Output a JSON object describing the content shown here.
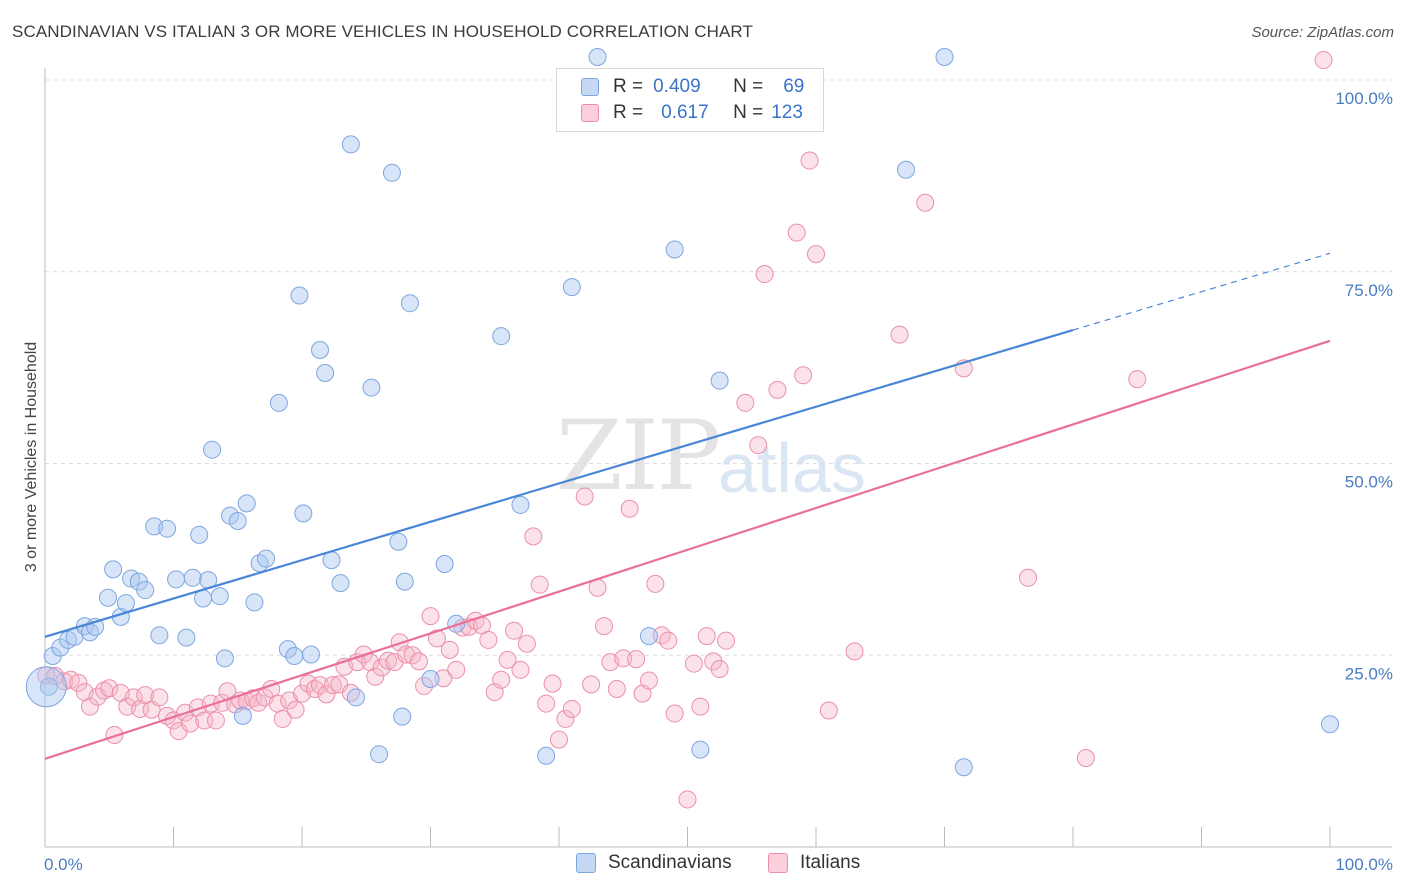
{
  "header": {
    "title": "SCANDINAVIAN VS ITALIAN 3 OR MORE VEHICLES IN HOUSEHOLD CORRELATION CHART",
    "source": "Source: ZipAtlas.com"
  },
  "watermark": {
    "zip": "ZIP",
    "atlas": "atlas"
  },
  "legend": {
    "rows": [
      {
        "r_label": "R =",
        "r_value": "0.409",
        "n_label": "N =",
        "n_value": "69",
        "color": "#a9c6ef"
      },
      {
        "r_label": "R =",
        "r_value": "0.617",
        "n_label": "N =",
        "n_value": "123",
        "color": "#f5b7c9"
      }
    ]
  },
  "bottom_legend": [
    {
      "label": "Scandinavians",
      "color": "#a9c6ef"
    },
    {
      "label": "Italians",
      "color": "#f5b7c9"
    }
  ],
  "chart_data": {
    "type": "scatter",
    "title": "SCANDINAVIAN VS ITALIAN 3 OR MORE VEHICLES IN HOUSEHOLD CORRELATION CHART",
    "ylabel": "3 or more Vehicles in Household",
    "xlabel": "",
    "xlim": [
      0,
      100
    ],
    "ylim": [
      0,
      100
    ],
    "x_tick_labels": [
      "0.0%",
      "100.0%"
    ],
    "y_tick_labels": [
      "25.0%",
      "50.0%",
      "75.0%",
      "100.0%"
    ],
    "y_ticks": [
      25,
      50,
      75,
      100
    ],
    "grid": true,
    "legend_position": "top-center",
    "colors": {
      "scandinavians": "#4a86d8",
      "italians": "#e8709a"
    },
    "series": [
      {
        "name": "Scandinavians",
        "trend": {
          "x": [
            0,
            80
          ],
          "y": [
            27.4,
            67.4
          ],
          "dashed_to": [
            100,
            77.4
          ]
        },
        "points": [
          [
            0.3,
            20.9
          ],
          [
            0.6,
            24.9
          ],
          [
            1.2,
            26.0
          ],
          [
            1.8,
            27.0
          ],
          [
            2.3,
            27.4
          ],
          [
            3.1,
            28.8
          ],
          [
            3.5,
            28.0
          ],
          [
            3.9,
            28.7
          ],
          [
            4.9,
            32.5
          ],
          [
            5.3,
            36.2
          ],
          [
            5.9,
            30.0
          ],
          [
            6.3,
            31.8
          ],
          [
            6.7,
            35.0
          ],
          [
            7.3,
            34.6
          ],
          [
            7.8,
            33.5
          ],
          [
            8.5,
            41.8
          ],
          [
            8.9,
            27.6
          ],
          [
            9.5,
            41.5
          ],
          [
            10.2,
            34.9
          ],
          [
            11.0,
            27.3
          ],
          [
            11.5,
            35.1
          ],
          [
            12.0,
            40.7
          ],
          [
            12.3,
            32.4
          ],
          [
            12.7,
            34.8
          ],
          [
            13.0,
            51.8
          ],
          [
            13.6,
            32.7
          ],
          [
            14.0,
            24.6
          ],
          [
            14.4,
            43.2
          ],
          [
            15.0,
            42.5
          ],
          [
            15.4,
            17.1
          ],
          [
            15.7,
            44.8
          ],
          [
            16.3,
            31.9
          ],
          [
            16.7,
            37.0
          ],
          [
            17.2,
            37.6
          ],
          [
            18.2,
            57.9
          ],
          [
            18.9,
            25.8
          ],
          [
            19.4,
            24.9
          ],
          [
            19.8,
            71.9
          ],
          [
            20.1,
            43.5
          ],
          [
            20.7,
            25.1
          ],
          [
            21.4,
            64.8
          ],
          [
            21.8,
            61.8
          ],
          [
            22.3,
            37.4
          ],
          [
            23.0,
            34.4
          ],
          [
            23.8,
            91.6
          ],
          [
            24.2,
            19.5
          ],
          [
            25.4,
            59.9
          ],
          [
            26.0,
            12.1
          ],
          [
            27.0,
            87.9
          ],
          [
            27.5,
            39.8
          ],
          [
            27.8,
            17.0
          ],
          [
            28.0,
            34.6
          ],
          [
            28.4,
            70.9
          ],
          [
            30.0,
            21.9
          ],
          [
            31.1,
            36.9
          ],
          [
            32.0,
            29.1
          ],
          [
            35.5,
            66.6
          ],
          [
            37.0,
            44.6
          ],
          [
            39.0,
            11.9
          ],
          [
            41.0,
            73.0
          ],
          [
            43.0,
            104.0
          ],
          [
            47.0,
            27.5
          ],
          [
            49.0,
            77.9
          ],
          [
            51.0,
            12.7
          ],
          [
            52.5,
            60.8
          ],
          [
            67.0,
            88.3
          ],
          [
            70.0,
            104.0
          ],
          [
            71.5,
            10.4
          ],
          [
            100.0,
            16.0
          ]
        ]
      },
      {
        "name": "Italians",
        "trend": {
          "x": [
            0,
            100
          ],
          "y": [
            11.5,
            66.0
          ]
        },
        "points": [
          [
            0.1,
            22.4
          ],
          [
            0.8,
            22.3
          ],
          [
            1.5,
            21.6
          ],
          [
            2.0,
            21.8
          ],
          [
            2.6,
            21.4
          ],
          [
            3.1,
            20.2
          ],
          [
            3.5,
            18.3
          ],
          [
            4.1,
            19.6
          ],
          [
            4.6,
            20.4
          ],
          [
            5.0,
            20.7
          ],
          [
            5.4,
            14.6
          ],
          [
            5.9,
            20.1
          ],
          [
            6.4,
            18.3
          ],
          [
            6.9,
            19.5
          ],
          [
            7.4,
            18.0
          ],
          [
            7.8,
            19.8
          ],
          [
            8.3,
            17.9
          ],
          [
            8.9,
            19.5
          ],
          [
            9.5,
            17.1
          ],
          [
            10.0,
            16.5
          ],
          [
            10.4,
            15.1
          ],
          [
            10.9,
            17.5
          ],
          [
            11.3,
            16.1
          ],
          [
            11.9,
            18.2
          ],
          [
            12.4,
            16.5
          ],
          [
            12.9,
            18.7
          ],
          [
            13.3,
            16.5
          ],
          [
            13.8,
            18.8
          ],
          [
            14.2,
            20.3
          ],
          [
            14.8,
            18.6
          ],
          [
            15.2,
            19.1
          ],
          [
            15.7,
            19.0
          ],
          [
            16.2,
            19.4
          ],
          [
            16.6,
            18.8
          ],
          [
            17.1,
            19.5
          ],
          [
            17.6,
            20.6
          ],
          [
            18.1,
            18.7
          ],
          [
            18.5,
            16.7
          ],
          [
            19.0,
            19.1
          ],
          [
            19.5,
            17.9
          ],
          [
            20.0,
            20.0
          ],
          [
            20.5,
            21.3
          ],
          [
            21.0,
            20.6
          ],
          [
            21.4,
            21.1
          ],
          [
            21.9,
            19.9
          ],
          [
            22.4,
            21.1
          ],
          [
            22.9,
            21.2
          ],
          [
            23.3,
            23.5
          ],
          [
            23.8,
            20.1
          ],
          [
            24.3,
            24.1
          ],
          [
            24.8,
            25.1
          ],
          [
            25.3,
            24.1
          ],
          [
            25.7,
            22.2
          ],
          [
            26.2,
            23.4
          ],
          [
            26.7,
            24.3
          ],
          [
            27.2,
            24.1
          ],
          [
            27.6,
            26.7
          ],
          [
            28.1,
            25.1
          ],
          [
            28.6,
            25.0
          ],
          [
            29.1,
            24.2
          ],
          [
            29.5,
            21.0
          ],
          [
            30.0,
            30.1
          ],
          [
            30.5,
            27.2
          ],
          [
            31.0,
            22.0
          ],
          [
            31.5,
            25.7
          ],
          [
            32.0,
            23.1
          ],
          [
            32.5,
            28.6
          ],
          [
            33.0,
            28.7
          ],
          [
            33.5,
            29.5
          ],
          [
            34.0,
            28.9
          ],
          [
            34.5,
            27.0
          ],
          [
            35.0,
            20.2
          ],
          [
            35.5,
            21.8
          ],
          [
            36.0,
            24.4
          ],
          [
            36.5,
            28.2
          ],
          [
            37.0,
            23.1
          ],
          [
            37.5,
            26.5
          ],
          [
            38.0,
            40.5
          ],
          [
            38.5,
            34.2
          ],
          [
            39.0,
            18.7
          ],
          [
            39.5,
            21.3
          ],
          [
            40.0,
            14.0
          ],
          [
            40.5,
            16.7
          ],
          [
            41.0,
            18.0
          ],
          [
            42.0,
            45.7
          ],
          [
            42.5,
            21.2
          ],
          [
            43.0,
            33.8
          ],
          [
            43.5,
            28.8
          ],
          [
            44.0,
            24.1
          ],
          [
            44.5,
            20.6
          ],
          [
            45.0,
            24.6
          ],
          [
            45.5,
            44.1
          ],
          [
            46.0,
            24.5
          ],
          [
            46.5,
            20.0
          ],
          [
            47.0,
            21.7
          ],
          [
            47.5,
            34.3
          ],
          [
            48.0,
            27.6
          ],
          [
            48.5,
            26.9
          ],
          [
            49.0,
            17.4
          ],
          [
            50.0,
            6.2
          ],
          [
            50.5,
            23.9
          ],
          [
            51.0,
            18.3
          ],
          [
            51.5,
            27.5
          ],
          [
            52.0,
            24.2
          ],
          [
            52.5,
            23.2
          ],
          [
            53.0,
            26.9
          ],
          [
            54.5,
            57.9
          ],
          [
            55.5,
            52.4
          ],
          [
            56.0,
            74.7
          ],
          [
            57.0,
            59.6
          ],
          [
            58.5,
            80.1
          ],
          [
            59.0,
            61.5
          ],
          [
            59.5,
            89.5
          ],
          [
            60.0,
            77.3
          ],
          [
            61.0,
            17.8
          ],
          [
            63.0,
            25.5
          ],
          [
            66.5,
            66.8
          ],
          [
            68.5,
            84.0
          ],
          [
            71.5,
            62.4
          ],
          [
            76.5,
            35.1
          ],
          [
            81.0,
            11.6
          ],
          [
            85.0,
            61.0
          ],
          [
            99.5,
            102.6
          ]
        ]
      }
    ]
  }
}
